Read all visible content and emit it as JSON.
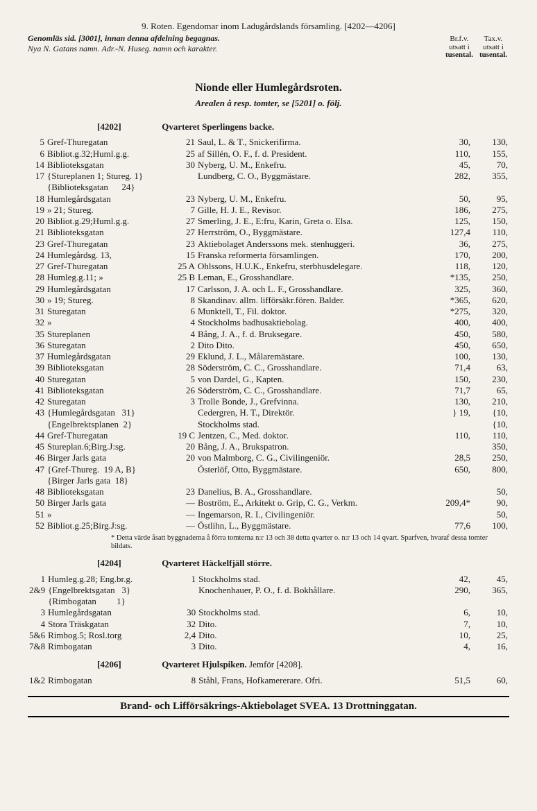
{
  "header": {
    "line1": "9. Roten.   Egendomar inom Ladugårdslands församling.   [4202—4206]",
    "genom": "Genomläs sid. [3001], innan denna afdelning begagnas.",
    "sub2": "Nya N.  Gatans namn.  Adr.-N.  Huseg. namn och karakter.",
    "right1": "Br.f.v.",
    "right2": "utsatt i",
    "right3": "tusental.",
    "right4": "Tax.v.",
    "right5": "utsatt i",
    "right6": "tusental."
  },
  "section": {
    "title": "Nionde eller Humlegårdsroten.",
    "sub": "Arealen å resp. tomter, se [5201] o. följ."
  },
  "q4202": {
    "ref": "[4202]",
    "name": "Qvarteret Sperlingens backe.",
    "rows": [
      {
        "n": "5",
        "street": "Gref-Thuregatan",
        "hn": "21",
        "desc": "Saul, L. & T., Snickerifirma.",
        "v1": "30,",
        "v2": "130,"
      },
      {
        "n": "6",
        "street": "Bibliot.g.32;Huml.g.g.",
        "hn": "25",
        "desc": "af Sillén, O. F., f. d. President.",
        "v1": "110,",
        "v2": "155,"
      },
      {
        "n": "14",
        "street": "Biblioteksgatan",
        "hn": "30",
        "desc": "Nyberg, U. M., Enkefru.",
        "v1": "45,",
        "v2": "70,"
      },
      {
        "n": "17",
        "street": "{Stureplanen 1; Stureg. 1}\n{Biblioteksgatan      24}",
        "hn": "",
        "desc": "Lundberg, C. O., Byggmästare.",
        "v1": "282,",
        "v2": "355,"
      },
      {
        "n": "18",
        "street": "Humlegårdsgatan",
        "hn": "23",
        "desc": "Nyberg, U. M., Enkefru.",
        "v1": "50,",
        "v2": "95,"
      },
      {
        "n": "19",
        "street": "      »      21; Stureg.",
        "hn": "7",
        "desc": "Gille, H. J. E., Revisor.",
        "v1": "186,",
        "v2": "275,"
      },
      {
        "n": "20",
        "street": "Bibliot.g.29;Huml.g.g.",
        "hn": "27",
        "desc": "Smerling, J. E., E:fru, Karin, Greta o. Elsa.",
        "v1": "125,",
        "v2": "150,"
      },
      {
        "n": "21",
        "street": "Biblioteksgatan",
        "hn": "27",
        "desc": "Herrström, O., Byggmästare.",
        "v1": "127,4",
        "v2": "110,"
      },
      {
        "n": "23",
        "street": "Gref-Thuregatan",
        "hn": "23",
        "desc": "Aktiebolaget Anderssons mek. stenhuggeri.",
        "v1": "36,",
        "v2": "275,"
      },
      {
        "n": "24",
        "street": "Humlegårdsg.    13,",
        "hn": "15",
        "desc": "Franska reformerta församlingen.",
        "v1": "170,",
        "v2": "200,"
      },
      {
        "n": "27",
        "street": "Gref-Thuregatan",
        "hn": "25 A",
        "desc": "Ohlssons, H.U.K., Enkefru, sterbhusdelegare.",
        "v1": "118,",
        "v2": "120,"
      },
      {
        "n": "28",
        "street": "Humleg.g.11; »",
        "hn": "25 B",
        "desc": "Leman, E., Grosshandlare.",
        "v1": "*135,",
        "v2": "250,"
      },
      {
        "n": "29",
        "street": "Humlegårdsgatan",
        "hn": "17",
        "desc": "Carlsson, J. A. och L. F., Grosshandlare.",
        "v1": "325,",
        "v2": "360,"
      },
      {
        "n": "30",
        "street": "    »     19; Stureg.",
        "hn": "8",
        "desc": "Skandinav. allm. lifförsäkr.fören. Balder.",
        "v1": "*365,",
        "v2": "620,"
      },
      {
        "n": "31",
        "street": "Sturegatan",
        "hn": "6",
        "desc": "Munktell, T., Fil. doktor.",
        "v1": "*275,",
        "v2": "320,"
      },
      {
        "n": "32",
        "street": "    »",
        "hn": "4",
        "desc": "Stockholms badhusaktiebolag.",
        "v1": "400,",
        "v2": "400,"
      },
      {
        "n": "35",
        "street": "Stureplanen",
        "hn": "4",
        "desc": "Bång, J. A., f. d. Bruksegare.",
        "v1": "450,",
        "v2": "580,"
      },
      {
        "n": "36",
        "street": "Sturegatan",
        "hn": "2",
        "desc": "     Dito          Dito.",
        "v1": "450,",
        "v2": "650,"
      },
      {
        "n": "37",
        "street": "Humlegårdsgatan",
        "hn": "29",
        "desc": "Eklund, J. L., Målaremästare.",
        "v1": "100,",
        "v2": "130,"
      },
      {
        "n": "39",
        "street": "Biblioteksgatan",
        "hn": "28",
        "desc": "Söderström, C. C., Grosshandlare.",
        "v1": "71,4",
        "v2": "63,"
      },
      {
        "n": "40",
        "street": "Sturegatan",
        "hn": "5",
        "desc": "von Dardel, G., Kapten.",
        "v1": "150,",
        "v2": "230,"
      },
      {
        "n": "41",
        "street": "Biblioteksgatan",
        "hn": "26",
        "desc": "Söderström, C. C., Grosshandlare.",
        "v1": "71,7",
        "v2": "65,"
      },
      {
        "n": "42",
        "street": "Sturegatan",
        "hn": "3",
        "desc": "Trolle Bonde, J., Grefvinna.",
        "v1": "130,",
        "v2": "210,"
      },
      {
        "n": "43",
        "street": "{Humlegårdsgatan   31}\n{Engelbrektsplanen  2}",
        "hn": "",
        "desc": "Cedergren, H. T., Direktör.\nStockholms stad.",
        "v1": "} 19,",
        "v2": "{10,\n{10,"
      },
      {
        "n": "44",
        "street": "Gref-Thuregatan",
        "hn": "19 C",
        "desc": "Jentzen, C., Med. doktor.",
        "v1": "110,",
        "v2": "110,"
      },
      {
        "n": "45",
        "street": "Stureplan.6;Birg.J:sg.",
        "hn": "20",
        "desc": "Bång, J. A., Brukspatron.",
        "v1": "",
        "v2": "350,"
      },
      {
        "n": "46",
        "street": "Birger Jarls gata",
        "hn": "20",
        "desc": "von Malmborg, C. G., Civilingeniör.",
        "v1": "28,5",
        "v2": "250,"
      },
      {
        "n": "47",
        "street": "{Gref-Thureg.  19 A, B}\n{Birger Jarls gata  18}",
        "hn": "",
        "desc": "Österlöf, Otto, Byggmästare.",
        "v1": "650,",
        "v2": "800,"
      },
      {
        "n": "48",
        "street": "Biblioteksgatan",
        "hn": "23",
        "desc": "Danelius, B. A., Grosshandlare.",
        "v1": "",
        "v2": "50,"
      },
      {
        "n": "50",
        "street": "Birger Jarls gata",
        "hn": "—",
        "desc": "Boström, E., Arkitekt o. Grip, C. G., Verkm.",
        "v1": "209,4*",
        "v2": "90,"
      },
      {
        "n": "51",
        "street": "      »",
        "hn": "—",
        "desc": "Ingemarson, R. I., Civilingeniör.",
        "v1": "",
        "v2": "50,"
      },
      {
        "n": "52",
        "street": "Bibliot.g.25;Birg.J:sg.",
        "hn": "—",
        "desc": "Östlihn, L., Byggmästare.",
        "v1": "77,6",
        "v2": "100,"
      }
    ],
    "footnote": "* Detta värde åsatt byggnaderna å förra tomterna n:r 13 och 38 detta qvarter o. n:r 13 och 14 qvart. Sparfven, hvaraf dessa tomter bildats."
  },
  "q4204": {
    "ref": "[4204]",
    "name": "Qvarteret Häckelfjäll större.",
    "rows": [
      {
        "n": "1",
        "street": "Humleg.g.28; Eng.br.g.",
        "hn": "1",
        "desc": "Stockholms stad.",
        "v1": "42,",
        "v2": "45,"
      },
      {
        "n": "2&9",
        "street": "{Engelbrektsgatan   3}\n{Rimbogatan         1}",
        "hn": "",
        "desc": "Knochenhauer, P. O., f. d. Bokhållare.",
        "v1": "290,",
        "v2": "365,"
      },
      {
        "n": "3",
        "street": "Humlegårdsgatan",
        "hn": "30",
        "desc": "Stockholms stad.",
        "v1": "6,",
        "v2": "10,"
      },
      {
        "n": "4",
        "street": "Stora Träskgatan",
        "hn": "32",
        "desc": "     Dito.",
        "v1": "7,",
        "v2": "10,"
      },
      {
        "n": "5&6",
        "street": "Rimbog.5; Rosl.torg",
        "hn": "2,4",
        "desc": "     Dito.",
        "v1": "10,",
        "v2": "25,"
      },
      {
        "n": "7&8",
        "street": "Rimbogatan",
        "hn": "3",
        "desc": "     Dito.",
        "v1": "4,",
        "v2": "16,"
      }
    ]
  },
  "q4206": {
    "ref": "[4206]",
    "name": "Qvarteret Hjulspiken.",
    "extra": "Jemför [4208].",
    "rows": [
      {
        "n": "1&2",
        "street": "Rimbogatan",
        "hn": "8",
        "desc": "Ståhl, Frans, Hofkamererare.           Ofri.",
        "v1": "51,5",
        "v2": "60,"
      }
    ]
  },
  "footer": "Brand- och Lifförsäkrings-Aktiebolaget SVEA. 13 Drottninggatan."
}
